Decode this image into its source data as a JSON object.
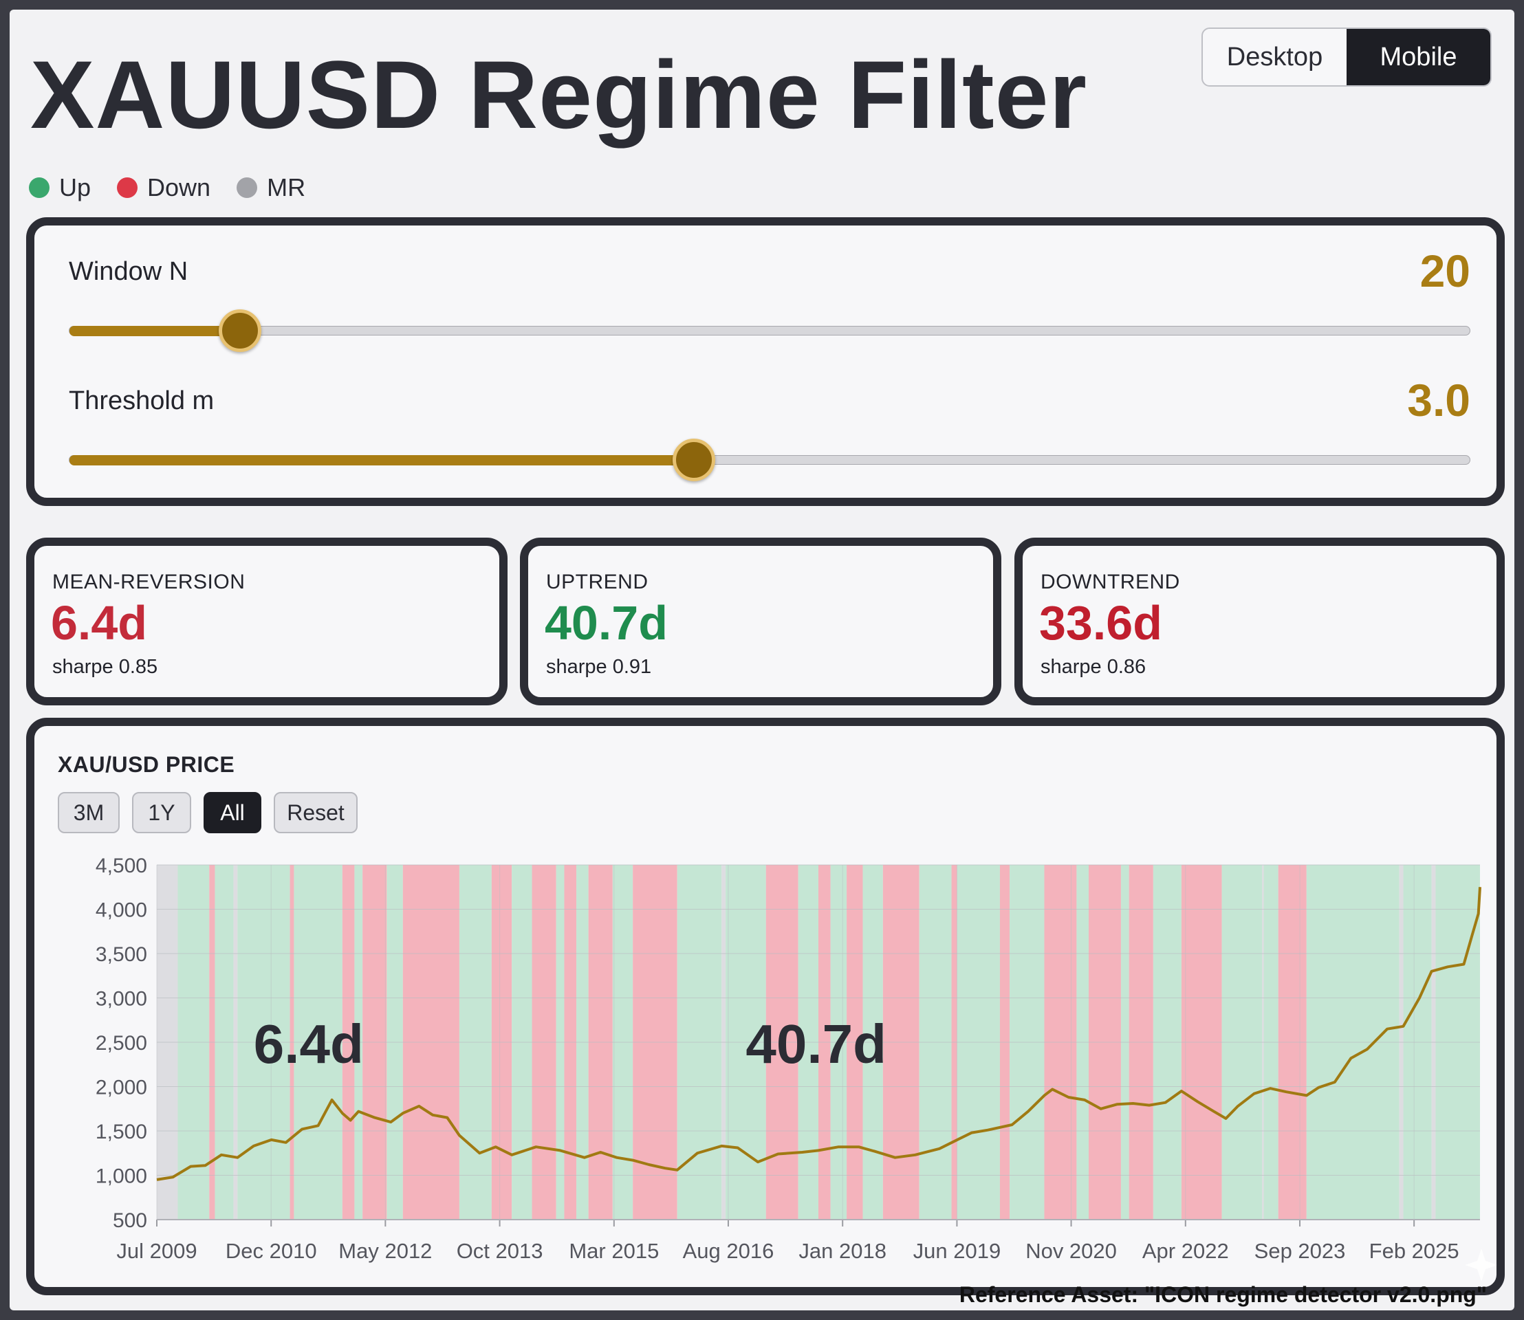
{
  "header": {
    "title": "XAUUSD Regime Filter",
    "view_toggle": {
      "desktop_label": "Desktop",
      "mobile_label": "Mobile",
      "selected": "Mobile"
    }
  },
  "legend": [
    {
      "label": "Up",
      "color": "#3aa76d"
    },
    {
      "label": "Down",
      "color": "#dd3947"
    },
    {
      "label": "MR",
      "color": "#a2a3a8"
    }
  ],
  "controls": {
    "window": {
      "label": "Window N",
      "value": "20",
      "fraction": 0.122
    },
    "threshold": {
      "label": "Threshold m",
      "value": "3.0",
      "fraction": 0.446
    }
  },
  "stats": [
    {
      "label": "MEAN-REVERSION",
      "value": "6.4d",
      "sharpe": "sharpe 0.85",
      "color": "#c32b3a"
    },
    {
      "label": "UPTREND",
      "value": "40.7d",
      "sharpe": "sharpe 0.91",
      "color": "#1f8c4e"
    },
    {
      "label": "DOWNTREND",
      "value": "33.6d",
      "sharpe": "sharpe 0.86",
      "color": "#c01f2e"
    }
  ],
  "chart_panel": {
    "title": "XAU/USD PRICE",
    "range_buttons": [
      {
        "label": "3M",
        "active": false
      },
      {
        "label": "1Y",
        "active": false
      },
      {
        "label": "All",
        "active": true
      },
      {
        "label": "Reset",
        "active": false
      }
    ]
  },
  "chart_data": {
    "type": "line",
    "title": "XAU/USD PRICE",
    "xlabel": "",
    "ylabel": "",
    "ylim": [
      500,
      4500
    ],
    "y_ticks": [
      500,
      1000,
      1500,
      2000,
      2500,
      3000,
      3500,
      4000,
      4500
    ],
    "y_tick_labels": [
      "500",
      "1,000",
      "1,500",
      "2,000",
      "2,500",
      "3,000",
      "3,500",
      "4,000",
      "4,500"
    ],
    "x_ticks": [
      2009.5,
      2010.917,
      2012.333,
      2013.75,
      2015.167,
      2016.583,
      2018.0,
      2019.417,
      2020.833,
      2022.25,
      2023.667,
      2025.083
    ],
    "x_tick_labels": [
      "Jul 2009",
      "Dec 2010",
      "May 2012",
      "Oct 2013",
      "Mar 2015",
      "Aug 2016",
      "Jan 2018",
      "Jun 2019",
      "Nov 2020",
      "Apr 2022",
      "Sep 2023",
      "Feb 2025"
    ],
    "xlim": [
      2009.5,
      2025.9
    ],
    "series": [
      {
        "color": "#a07a12",
        "x": [
          2009.5,
          2009.7,
          2009.92,
          2010.1,
          2010.3,
          2010.5,
          2010.7,
          2010.92,
          2011.1,
          2011.3,
          2011.5,
          2011.67,
          2011.8,
          2011.9,
          2012.0,
          2012.2,
          2012.4,
          2012.55,
          2012.75,
          2012.92,
          2013.1,
          2013.25,
          2013.4,
          2013.5,
          2013.7,
          2013.9,
          2014.2,
          2014.5,
          2014.8,
          2015.0,
          2015.2,
          2015.4,
          2015.6,
          2015.8,
          2015.95,
          2016.2,
          2016.5,
          2016.7,
          2016.95,
          2017.2,
          2017.5,
          2017.7,
          2017.95,
          2018.2,
          2018.4,
          2018.65,
          2018.9,
          2019.2,
          2019.42,
          2019.6,
          2019.8,
          2020.1,
          2020.3,
          2020.5,
          2020.6,
          2020.8,
          2021.0,
          2021.2,
          2021.4,
          2021.6,
          2021.8,
          2022.0,
          2022.2,
          2022.4,
          2022.6,
          2022.75,
          2022.9,
          2023.1,
          2023.3,
          2023.5,
          2023.75,
          2023.9,
          2024.1,
          2024.3,
          2024.5,
          2024.75,
          2024.95,
          2025.15,
          2025.3,
          2025.5,
          2025.7,
          2025.8,
          2025.88,
          2025.9
        ],
        "y": [
          950,
          980,
          1100,
          1110,
          1230,
          1200,
          1330,
          1400,
          1370,
          1520,
          1560,
          1850,
          1700,
          1620,
          1720,
          1650,
          1600,
          1700,
          1780,
          1680,
          1650,
          1450,
          1330,
          1250,
          1320,
          1230,
          1320,
          1280,
          1200,
          1260,
          1200,
          1170,
          1120,
          1080,
          1060,
          1250,
          1330,
          1310,
          1150,
          1240,
          1260,
          1280,
          1320,
          1320,
          1270,
          1200,
          1230,
          1300,
          1400,
          1480,
          1510,
          1570,
          1720,
          1900,
          1970,
          1880,
          1850,
          1750,
          1800,
          1810,
          1790,
          1820,
          1950,
          1830,
          1720,
          1640,
          1780,
          1920,
          1980,
          1940,
          1900,
          1990,
          2050,
          2320,
          2420,
          2650,
          2680,
          3000,
          3300,
          3350,
          3380,
          3700,
          3950,
          4250
        ]
      }
    ],
    "regimes": [
      [
        "MR",
        2009.5,
        2009.76
      ],
      [
        "Up",
        2009.76,
        2010.15
      ],
      [
        "Down",
        2010.15,
        2010.22
      ],
      [
        "Up",
        2010.22,
        2010.45
      ],
      [
        "MR",
        2010.45,
        2010.5
      ],
      [
        "Up",
        2010.5,
        2011.15
      ],
      [
        "Down",
        2011.15,
        2011.2
      ],
      [
        "Up",
        2011.2,
        2011.8
      ],
      [
        "Down",
        2011.8,
        2011.95
      ],
      [
        "Up",
        2011.95,
        2012.05
      ],
      [
        "Down",
        2012.05,
        2012.35
      ],
      [
        "Up",
        2012.35,
        2012.55
      ],
      [
        "Down",
        2012.55,
        2013.25
      ],
      [
        "Up",
        2013.25,
        2013.65
      ],
      [
        "Down",
        2013.65,
        2013.9
      ],
      [
        "Up",
        2013.9,
        2014.15
      ],
      [
        "Down",
        2014.15,
        2014.45
      ],
      [
        "Up",
        2014.45,
        2014.55
      ],
      [
        "Down",
        2014.55,
        2014.7
      ],
      [
        "Up",
        2014.7,
        2014.85
      ],
      [
        "Down",
        2014.85,
        2015.15
      ],
      [
        "Up",
        2015.15,
        2015.4
      ],
      [
        "Down",
        2015.4,
        2015.95
      ],
      [
        "Up",
        2015.95,
        2016.5
      ],
      [
        "MR",
        2016.5,
        2016.55
      ],
      [
        "Up",
        2016.55,
        2017.05
      ],
      [
        "Down",
        2017.05,
        2017.45
      ],
      [
        "Up",
        2017.45,
        2017.7
      ],
      [
        "Down",
        2017.7,
        2017.85
      ],
      [
        "Up",
        2017.85,
        2018.05
      ],
      [
        "Down",
        2018.05,
        2018.25
      ],
      [
        "Up",
        2018.25,
        2018.5
      ],
      [
        "Down",
        2018.5,
        2018.95
      ],
      [
        "Up",
        2018.95,
        2019.35
      ],
      [
        "Down",
        2019.35,
        2019.42
      ],
      [
        "Up",
        2019.42,
        2019.95
      ],
      [
        "Down",
        2019.95,
        2020.07
      ],
      [
        "Up",
        2020.07,
        2020.5
      ],
      [
        "Down",
        2020.5,
        2020.9
      ],
      [
        "Up",
        2020.9,
        2021.05
      ],
      [
        "Down",
        2021.05,
        2021.45
      ],
      [
        "Up",
        2021.45,
        2021.55
      ],
      [
        "Down",
        2021.55,
        2021.85
      ],
      [
        "Up",
        2021.85,
        2022.2
      ],
      [
        "Down",
        2022.2,
        2022.7
      ],
      [
        "Up",
        2022.7,
        2023.2
      ],
      [
        "MR",
        2023.2,
        2023.22
      ],
      [
        "Up",
        2023.22,
        2023.4
      ],
      [
        "Down",
        2023.4,
        2023.75
      ],
      [
        "Up",
        2023.75,
        2024.9
      ],
      [
        "MR",
        2024.9,
        2024.95
      ],
      [
        "Up",
        2024.95,
        2025.3
      ],
      [
        "MR",
        2025.3,
        2025.35
      ],
      [
        "Up",
        2025.35,
        2025.9
      ]
    ],
    "regime_colors": {
      "Up": "#c5e6d4",
      "Down": "#f4b3bc",
      "MR": "#dddde1"
    },
    "annotations": [
      {
        "text": "6.4d",
        "x": 2010.7,
        "y": 2500
      },
      {
        "text": "40.7d",
        "x": 2016.8,
        "y": 2500
      }
    ],
    "grid": true
  },
  "footer": {
    "text": "Reference Asset: \"ICON regime detector v2.0.png\""
  }
}
